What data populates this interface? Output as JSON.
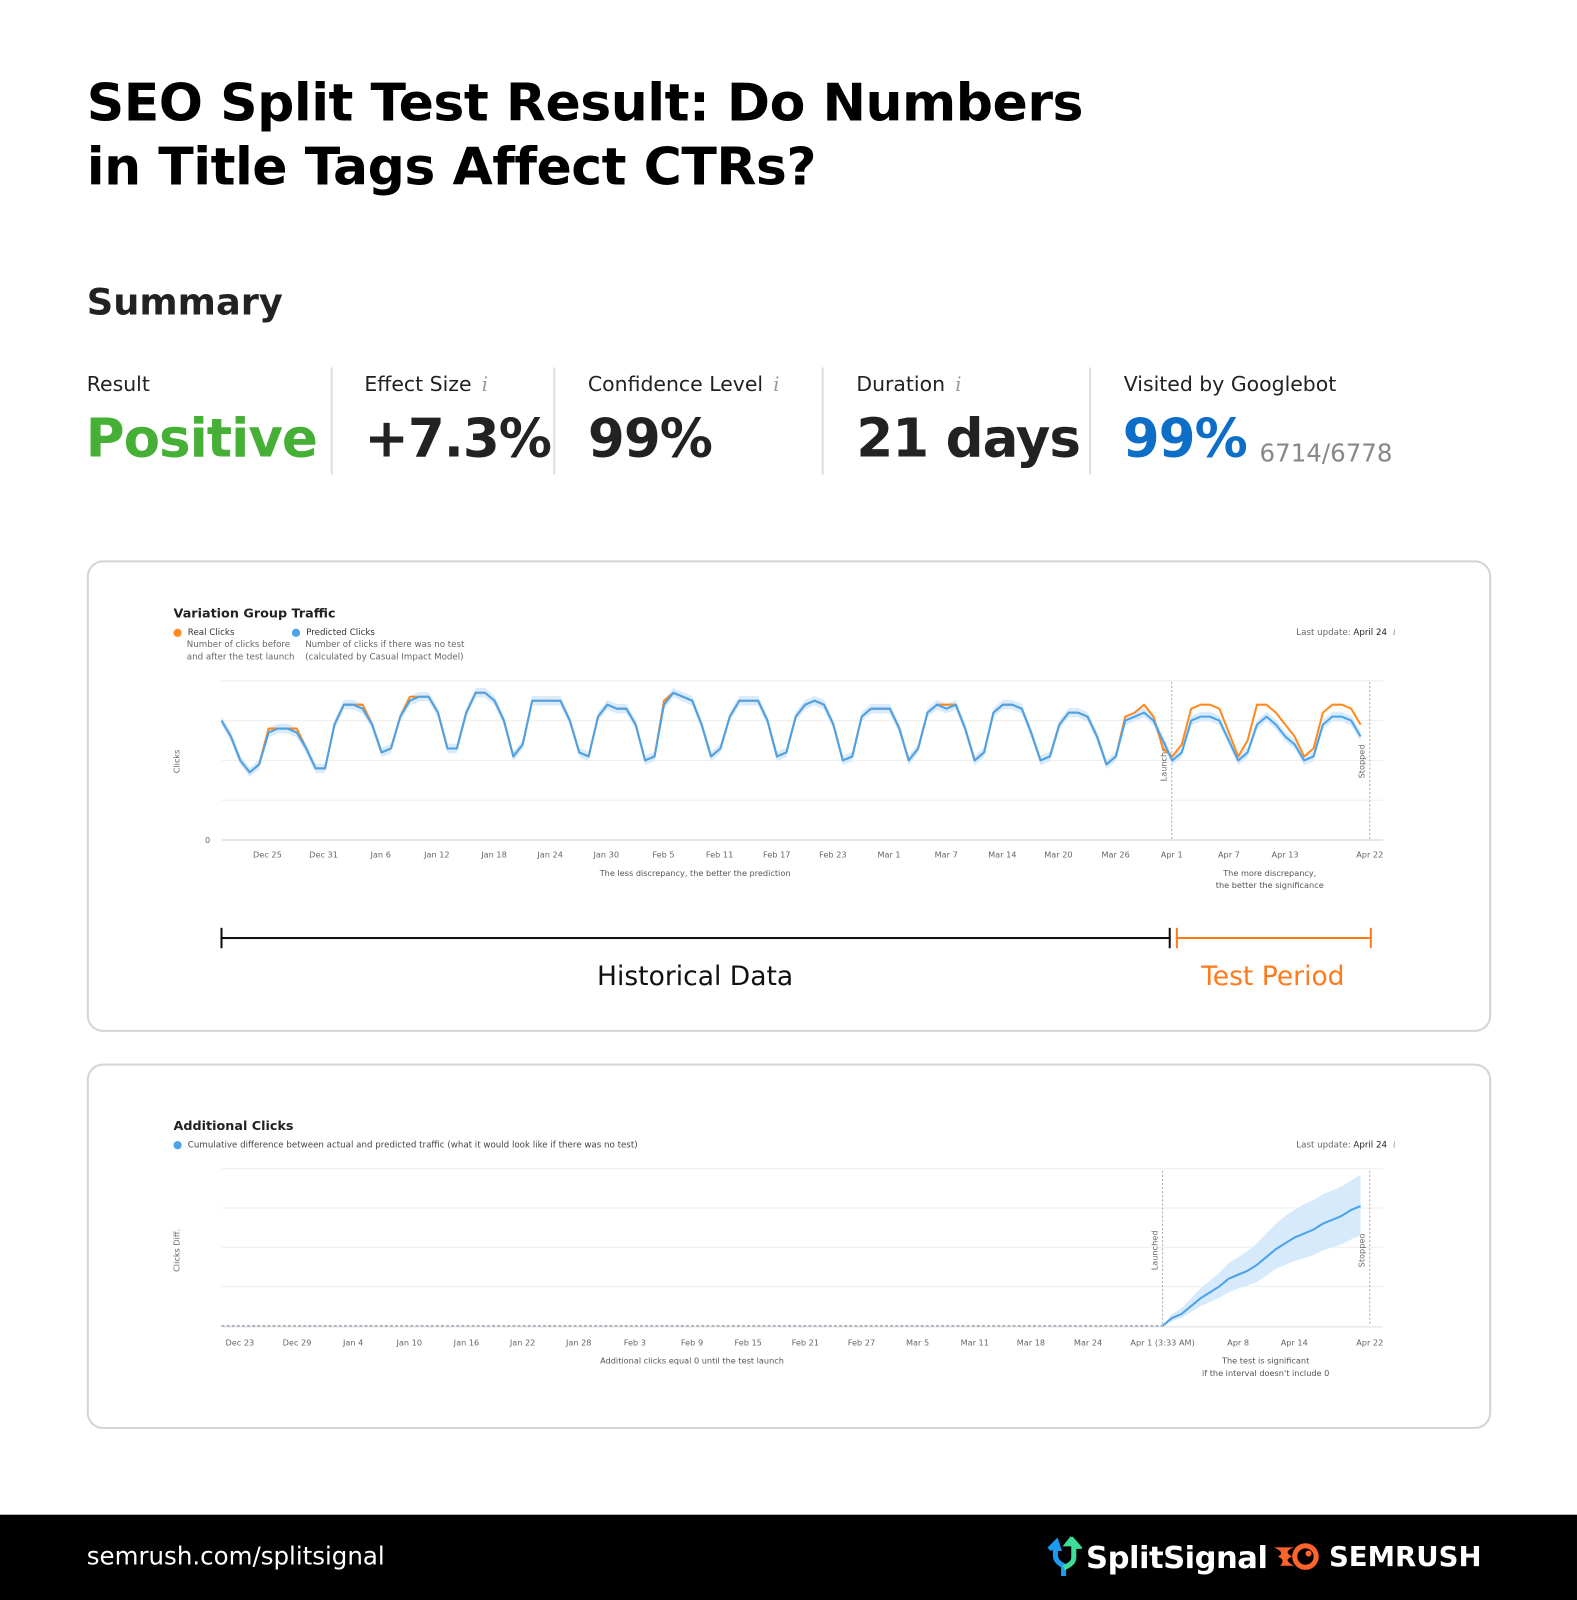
{
  "title": "SEO Split Test Result: Do Numbers in Title Tags Affect CTRs?",
  "title_line1": "SEO Split Test Result: Do Numbers",
  "title_line2": "in Title Tags Affect CTRs?",
  "summary": {
    "heading": "Summary",
    "metrics": [
      {
        "label": "Result",
        "value": "Positive",
        "info": false
      },
      {
        "label": "Effect Size",
        "value": "+7.3%",
        "info": true
      },
      {
        "label": "Confidence Level",
        "value": "99%",
        "info": true
      },
      {
        "label": "Duration",
        "value": "21 days",
        "info": true
      },
      {
        "label": "Visited by Googlebot",
        "value": "99%",
        "sub": "6714/6778",
        "info": false
      }
    ]
  },
  "colors": {
    "positive": "#45b035",
    "googlebot": "#0d6ec8",
    "real": "#ff8a1f",
    "predicted": "#4aa3ea",
    "test_period": "#ff7a1a"
  },
  "chart_data": [
    {
      "type": "line",
      "title": "Variation Group Traffic",
      "ylabel": "Clicks",
      "y_tick_labels": [
        "0"
      ],
      "last_update_label": "Last update:",
      "last_update": "April 24",
      "grid": true,
      "legend": [
        {
          "name": "Real Clicks",
          "desc1": "Number of clicks before",
          "desc2": "and after the test launch"
        },
        {
          "name": "Predicted Clicks",
          "desc1": "Number of clicks if there was no test",
          "desc2": "(calculated by Casual Impact Model)"
        }
      ],
      "x_tick_labels": [
        "Dec 25",
        "Dec 31",
        "Jan 6",
        "Jan 12",
        "Jan 18",
        "Jan 24",
        "Jan 30",
        "Feb 5",
        "Feb 11",
        "Feb 17",
        "Feb 23",
        "Mar 1",
        "Mar 7",
        "Mar 14",
        "Mar 20",
        "Mar 26",
        "Apr 1",
        "Apr 7",
        "Apr 13",
        "Apr 22"
      ],
      "markers": [
        "Launched",
        "Stopped"
      ],
      "annotation_left": "The less discrepancy, the better the prediction",
      "annotation_right": [
        "The more discrepancy,",
        "the better the significance"
      ],
      "x": [
        "Dec 22",
        "Dec 23",
        "Dec 24",
        "Dec 25",
        "Dec 26",
        "Dec 27",
        "Dec 28",
        "Dec 29",
        "Dec 30",
        "Dec 31",
        "Jan 1",
        "Jan 2",
        "Jan 3",
        "Jan 4",
        "Jan 5",
        "Jan 6",
        "Jan 7",
        "Jan 8",
        "Jan 9",
        "Jan 10",
        "Jan 11",
        "Jan 12",
        "Jan 13",
        "Jan 14",
        "Jan 15",
        "Jan 16",
        "Jan 17",
        "Jan 18",
        "Jan 19",
        "Jan 20",
        "Jan 21",
        "Jan 22",
        "Jan 23",
        "Jan 24",
        "Jan 25",
        "Jan 26",
        "Jan 27",
        "Jan 28",
        "Jan 29",
        "Jan 30",
        "Jan 31",
        "Feb 1",
        "Feb 2",
        "Feb 3",
        "Feb 4",
        "Feb 5",
        "Feb 6",
        "Feb 7",
        "Feb 8",
        "Feb 9",
        "Feb 10",
        "Feb 11",
        "Feb 12",
        "Feb 13",
        "Feb 14",
        "Feb 15",
        "Feb 16",
        "Feb 17",
        "Feb 18",
        "Feb 19",
        "Feb 20",
        "Feb 21",
        "Feb 22",
        "Feb 23",
        "Feb 24",
        "Feb 25",
        "Feb 26",
        "Feb 27",
        "Feb 28",
        "Mar 1",
        "Mar 2",
        "Mar 3",
        "Mar 4",
        "Mar 5",
        "Mar 6",
        "Mar 7",
        "Mar 8",
        "Mar 9",
        "Mar 10",
        "Mar 11",
        "Mar 12",
        "Mar 13",
        "Mar 14",
        "Mar 15",
        "Mar 16",
        "Mar 17",
        "Mar 18",
        "Mar 19",
        "Mar 20",
        "Mar 21",
        "Mar 22",
        "Mar 23",
        "Mar 24",
        "Mar 25",
        "Mar 26",
        "Mar 27",
        "Mar 28",
        "Mar 29",
        "Mar 30",
        "Mar 31",
        "Apr 1",
        "Apr 2",
        "Apr 3",
        "Apr 4",
        "Apr 5",
        "Apr 6",
        "Apr 7",
        "Apr 8",
        "Apr 9",
        "Apr 10",
        "Apr 11",
        "Apr 12",
        "Apr 13",
        "Apr 14",
        "Apr 15",
        "Apr 16",
        "Apr 17",
        "Apr 18",
        "Apr 19",
        "Apr 20",
        "Apr 21",
        "Apr 22"
      ],
      "series": [
        {
          "name": "Predicted Clicks",
          "values": [
            3.0,
            2.6,
            2.0,
            1.7,
            1.9,
            2.7,
            2.8,
            2.8,
            2.7,
            2.3,
            1.8,
            1.8,
            2.9,
            3.4,
            3.4,
            3.3,
            2.9,
            2.2,
            2.3,
            3.1,
            3.5,
            3.6,
            3.6,
            3.2,
            2.3,
            2.3,
            3.2,
            3.7,
            3.7,
            3.5,
            3.0,
            2.1,
            2.4,
            3.5,
            3.5,
            3.5,
            3.5,
            3.0,
            2.2,
            2.1,
            3.1,
            3.4,
            3.3,
            3.3,
            2.9,
            2.0,
            2.1,
            3.4,
            3.7,
            3.6,
            3.5,
            2.9,
            2.1,
            2.3,
            3.1,
            3.5,
            3.5,
            3.5,
            3.0,
            2.1,
            2.2,
            3.1,
            3.4,
            3.5,
            3.4,
            2.9,
            2.0,
            2.1,
            3.1,
            3.3,
            3.3,
            3.3,
            2.8,
            2.0,
            2.3,
            3.2,
            3.4,
            3.3,
            3.4,
            2.8,
            2.0,
            2.2,
            3.2,
            3.4,
            3.4,
            3.3,
            2.7,
            2.0,
            2.1,
            2.9,
            3.2,
            3.2,
            3.1,
            2.6,
            1.9,
            2.1,
            3.0,
            3.1,
            3.2,
            3.0,
            2.5,
            2.0,
            2.2,
            3.0,
            3.1,
            3.1,
            3.0,
            2.5,
            2.0,
            2.2,
            2.9,
            3.1,
            2.9,
            2.6,
            2.4,
            2.0,
            2.1,
            2.9,
            3.1,
            3.1,
            3.0,
            2.6
          ]
        },
        {
          "name": "Real Clicks",
          "values": [
            3.0,
            2.6,
            2.0,
            1.7,
            1.9,
            2.8,
            2.8,
            2.8,
            2.8,
            2.3,
            1.8,
            1.8,
            2.9,
            3.4,
            3.4,
            3.4,
            2.9,
            2.2,
            2.3,
            3.1,
            3.6,
            3.6,
            3.6,
            3.2,
            2.3,
            2.3,
            3.2,
            3.7,
            3.7,
            3.5,
            3.0,
            2.1,
            2.4,
            3.5,
            3.5,
            3.5,
            3.5,
            3.0,
            2.2,
            2.1,
            3.1,
            3.4,
            3.3,
            3.3,
            2.9,
            2.0,
            2.1,
            3.5,
            3.7,
            3.6,
            3.5,
            2.9,
            2.1,
            2.3,
            3.1,
            3.5,
            3.5,
            3.5,
            3.0,
            2.1,
            2.2,
            3.1,
            3.4,
            3.5,
            3.4,
            2.9,
            2.0,
            2.1,
            3.1,
            3.3,
            3.3,
            3.3,
            2.8,
            2.0,
            2.3,
            3.2,
            3.4,
            3.4,
            3.4,
            2.8,
            2.0,
            2.2,
            3.2,
            3.4,
            3.4,
            3.3,
            2.7,
            2.0,
            2.1,
            2.9,
            3.2,
            3.2,
            3.1,
            2.6,
            1.9,
            2.1,
            3.1,
            3.2,
            3.4,
            3.1,
            2.3,
            2.1,
            2.4,
            3.3,
            3.4,
            3.4,
            3.3,
            2.7,
            2.1,
            2.5,
            3.4,
            3.4,
            3.2,
            2.9,
            2.6,
            2.1,
            2.3,
            3.2,
            3.4,
            3.4,
            3.3,
            2.9
          ]
        }
      ]
    },
    {
      "type": "area",
      "title": "Additional Clicks",
      "ylabel": "Clicks Diff.",
      "last_update_label": "Last update:",
      "last_update": "April 24",
      "grid": true,
      "legend": [
        {
          "name": "Cumulative difference between actual and predicted traffic (what it would look like if there was no test)"
        }
      ],
      "x_tick_labels": [
        "Dec 23",
        "Dec 29",
        "Jan 4",
        "Jan 10",
        "Jan 16",
        "Jan 22",
        "Jan 28",
        "Feb 3",
        "Feb 9",
        "Feb 15",
        "Feb 21",
        "Feb 27",
        "Mar 5",
        "Mar 11",
        "Mar 18",
        "Mar 24",
        "Apr 1 (3:33 AM)",
        "Apr 8",
        "Apr 14",
        "Apr 22"
      ],
      "markers": [
        "Launched",
        "Stopped"
      ],
      "annotation_left": "Additional clicks equal 0 until the test launch",
      "annotation_right": [
        "The test is significant",
        "if the interval doesn't include 0"
      ],
      "x": [
        "Apr 1",
        "Apr 2",
        "Apr 3",
        "Apr 4",
        "Apr 5",
        "Apr 6",
        "Apr 7",
        "Apr 8",
        "Apr 9",
        "Apr 10",
        "Apr 11",
        "Apr 12",
        "Apr 13",
        "Apr 14",
        "Apr 15",
        "Apr 16",
        "Apr 17",
        "Apr 18",
        "Apr 19",
        "Apr 20",
        "Apr 21",
        "Apr 22"
      ],
      "values": [
        0,
        0.2,
        0.3,
        0.5,
        0.7,
        0.85,
        1.0,
        1.2,
        1.3,
        1.4,
        1.55,
        1.75,
        1.95,
        2.1,
        2.25,
        2.35,
        2.45,
        2.6,
        2.7,
        2.8,
        2.95,
        3.05
      ],
      "upper": [
        0,
        0.3,
        0.45,
        0.7,
        0.95,
        1.15,
        1.35,
        1.6,
        1.75,
        1.9,
        2.1,
        2.35,
        2.6,
        2.8,
        2.95,
        3.1,
        3.2,
        3.35,
        3.45,
        3.55,
        3.7,
        3.85
      ],
      "lower": [
        0,
        0.12,
        0.2,
        0.35,
        0.5,
        0.6,
        0.72,
        0.85,
        0.95,
        1.02,
        1.12,
        1.28,
        1.45,
        1.55,
        1.65,
        1.72,
        1.8,
        1.92,
        2.0,
        2.08,
        2.2,
        2.3
      ]
    }
  ],
  "timeline": {
    "historical": "Historical Data",
    "test": "Test Period"
  },
  "footer": {
    "url": "semrush.com/splitsignal",
    "logo1": "SplitSignal",
    "logo2": "SEMRUSH"
  }
}
